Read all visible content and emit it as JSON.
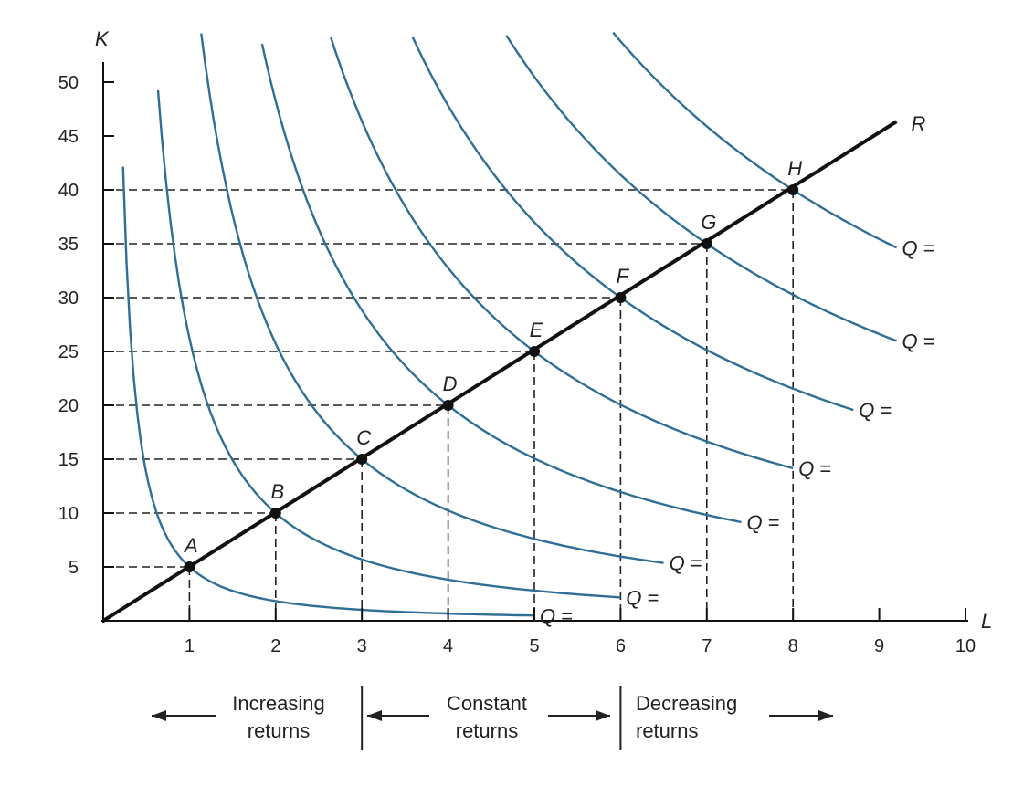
{
  "chart_data": {
    "type": "line",
    "title": "",
    "xlabel": "L",
    "ylabel": "K",
    "xlim": [
      0,
      10
    ],
    "ylim": [
      0,
      50
    ],
    "x_ticks": [
      "1",
      "2",
      "3",
      "4",
      "5",
      "6",
      "7",
      "8",
      "9",
      "10"
    ],
    "y_ticks": [
      "5",
      "10",
      "15",
      "20",
      "25",
      "30",
      "35",
      "40",
      "45",
      "50"
    ],
    "ray": {
      "name": "R",
      "k_per_l": 5
    },
    "points": [
      {
        "label": "A",
        "L": 1,
        "K": 5
      },
      {
        "label": "B",
        "L": 2,
        "K": 10
      },
      {
        "label": "C",
        "L": 3,
        "K": 15
      },
      {
        "label": "D",
        "L": 4,
        "K": 20
      },
      {
        "label": "E",
        "L": 5,
        "K": 25
      },
      {
        "label": "F",
        "L": 6,
        "K": 30
      },
      {
        "label": "G",
        "L": 7,
        "K": 35
      },
      {
        "label": "H",
        "L": 8,
        "K": 40
      }
    ],
    "isoquants": [
      {
        "through": "A",
        "label": "Q =",
        "L_range": [
          0.15,
          5.0
        ]
      },
      {
        "through": "B",
        "label": "Q =",
        "L_range": [
          0.45,
          6.0
        ]
      },
      {
        "through": "C",
        "label": "Q =",
        "L_range": [
          1.0,
          6.5
        ]
      },
      {
        "through": "D",
        "label": "Q =",
        "L_range": [
          1.65,
          7.4
        ]
      },
      {
        "through": "E",
        "label": "Q =",
        "L_range": [
          2.55,
          8.0
        ]
      },
      {
        "through": "F",
        "label": "Q =",
        "L_range": [
          3.5,
          8.7
        ]
      },
      {
        "through": "G",
        "label": "Q =",
        "L_range": [
          4.6,
          9.2
        ]
      },
      {
        "through": "H",
        "label": "Q =",
        "L_range": [
          5.8,
          9.2
        ]
      }
    ],
    "regions": [
      {
        "text": "Increasing returns",
        "arrow": "left"
      },
      {
        "text": "Constant returns",
        "arrow": "both"
      },
      {
        "text": "Decreasing returns",
        "arrow": "right"
      }
    ],
    "colors": {
      "isoquant": "#2f6f96",
      "axis": "#111111",
      "ray": "#111111"
    }
  }
}
